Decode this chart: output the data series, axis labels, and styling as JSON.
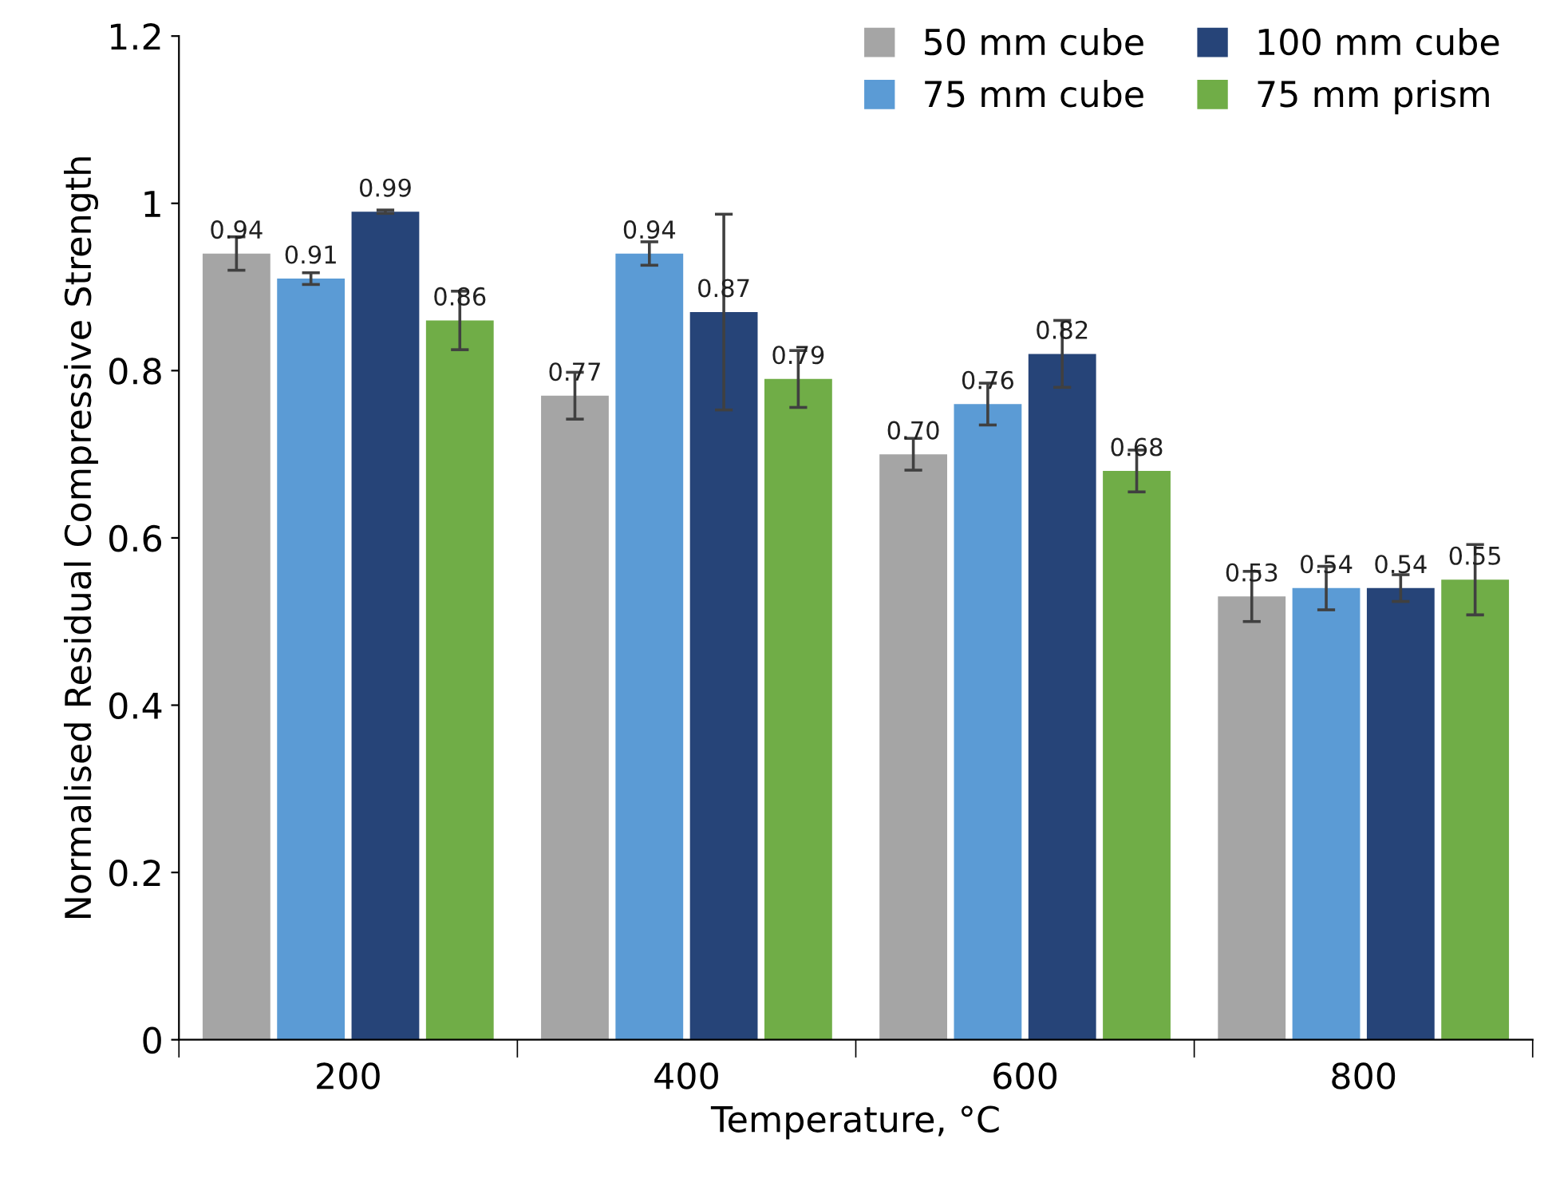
{
  "chart_data": {
    "type": "bar",
    "xlabel": "Temperature, °C",
    "ylabel": "Normalised Residual Compressive Strength",
    "categories": [
      "200",
      "400",
      "600",
      "800"
    ],
    "series": [
      {
        "name": "50 mm cube",
        "color": "#a5a5a5",
        "values": [
          0.94,
          0.77,
          0.7,
          0.53
        ],
        "errors": [
          0.02,
          0.028,
          0.019,
          0.03
        ],
        "value_labels": [
          "0.94",
          "0.77",
          "0.70",
          "0.53"
        ]
      },
      {
        "name": "75 mm cube",
        "color": "#5b9bd5",
        "values": [
          0.91,
          0.94,
          0.76,
          0.54
        ],
        "errors": [
          0.007,
          0.014,
          0.025,
          0.026
        ],
        "value_labels": [
          "0.91",
          "0.94",
          "0.76",
          "0.54"
        ]
      },
      {
        "name": "100 mm cube",
        "color": "#264478",
        "values": [
          0.99,
          0.87,
          0.82,
          0.54
        ],
        "errors": [
          0.002,
          0.117,
          0.04,
          0.016
        ],
        "value_labels": [
          "0.99",
          "0.87",
          "0.82",
          "0.54"
        ]
      },
      {
        "name": "75 mm prism",
        "color": "#70ad47",
        "values": [
          0.86,
          0.79,
          0.68,
          0.55
        ],
        "errors": [
          0.035,
          0.034,
          0.025,
          0.042
        ],
        "value_labels": [
          "0.86",
          "0.79",
          "0.68",
          "0.55"
        ]
      }
    ],
    "ylim": [
      0,
      1.2
    ],
    "yticks": [
      0,
      0.2,
      0.4,
      0.6,
      0.8,
      1,
      1.2
    ],
    "grid": false,
    "legend": "top right"
  }
}
